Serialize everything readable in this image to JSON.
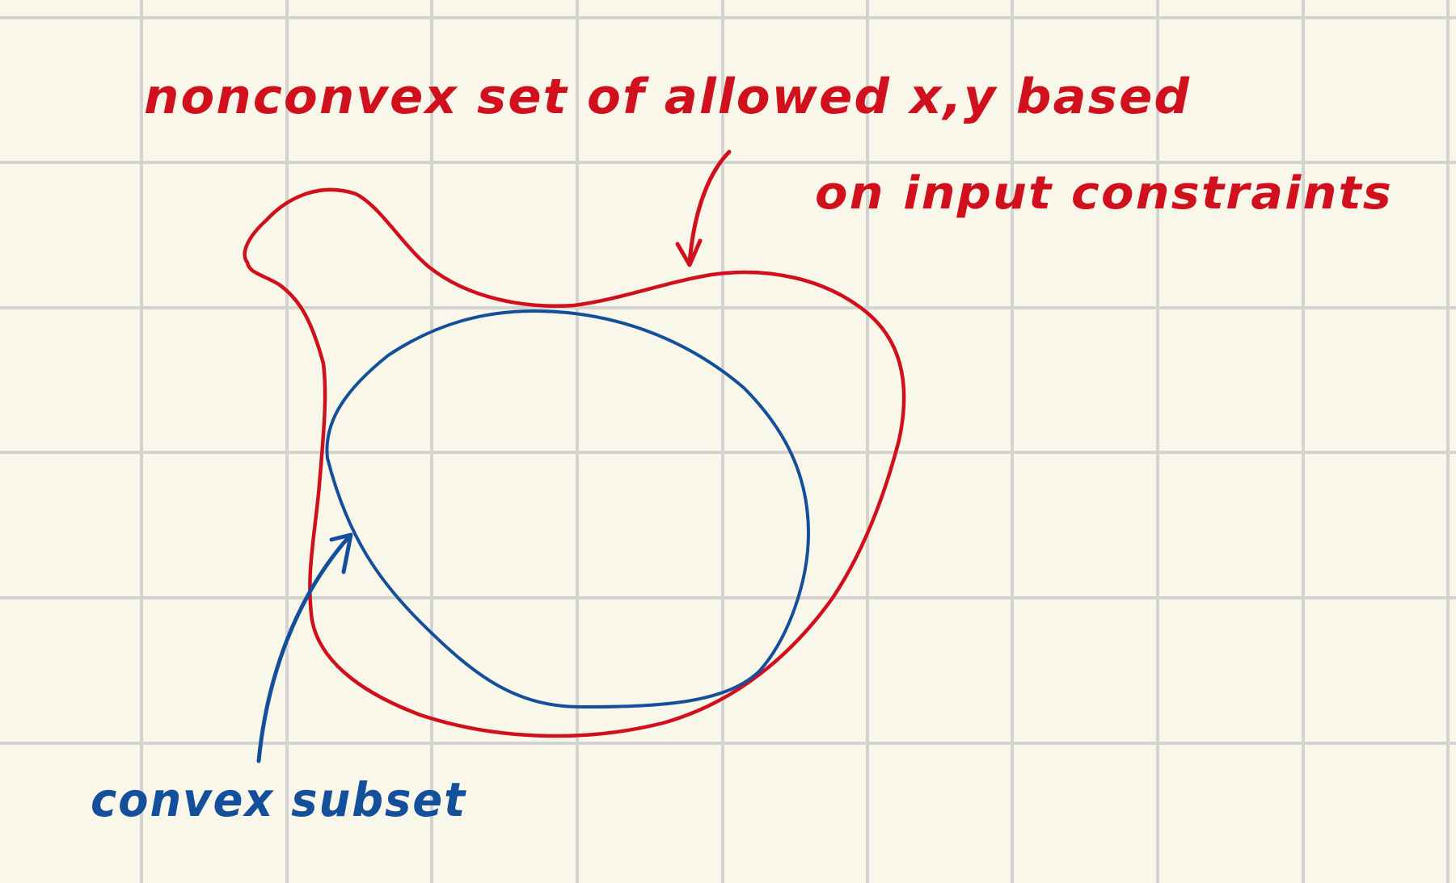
{
  "canvas": {
    "background": "#f9f7ea",
    "grid_color": "#d3d3d1"
  },
  "colors": {
    "red_ink": "#d0101c",
    "blue_ink": "#134f9a"
  },
  "annotations": {
    "nonconvex_line1": "nonconvex set of allowed x,y based",
    "nonconvex_line2": "on input constraints",
    "convex_label": "convex subset"
  }
}
